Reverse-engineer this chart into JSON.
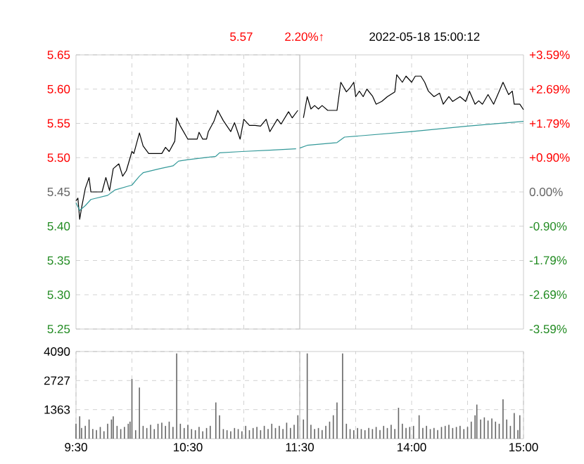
{
  "chart_data": [
    {
      "type": "line",
      "annotations": [
        "5.57",
        "2.20%↑",
        "2022-05-18 15:00:12"
      ],
      "series": [
        {
          "color": "#000000",
          "x": [
            9.5,
            9.517,
            9.533,
            9.55,
            9.583,
            9.617,
            9.633,
            9.733,
            9.767,
            9.8,
            9.833,
            9.883,
            9.917,
            9.95,
            10,
            10.017,
            10.067,
            10.1,
            10.15,
            10.267,
            10.3,
            10.333,
            10.383,
            10.4,
            10.433,
            10.5,
            10.583,
            10.6,
            10.633,
            10.667,
            10.683,
            10.733,
            10.767,
            10.817,
            10.883,
            10.917,
            10.967,
            11,
            11.05,
            11.1,
            11.15,
            11.2,
            11.233,
            11.3,
            11.333,
            11.4,
            11.433,
            11.483
          ],
          "values": [
            5.437,
            5.441,
            5.41,
            5.427,
            5.455,
            5.471,
            5.45,
            5.45,
            5.471,
            5.452,
            5.484,
            5.491,
            5.473,
            5.481,
            5.509,
            5.506,
            5.536,
            5.517,
            5.506,
            5.506,
            5.515,
            5.509,
            5.524,
            5.558,
            5.546,
            5.527,
            5.527,
            5.537,
            5.527,
            5.527,
            5.538,
            5.553,
            5.569,
            5.554,
            5.538,
            5.551,
            5.527,
            5.556,
            5.547,
            5.547,
            5.546,
            5.556,
            5.538,
            5.556,
            5.549,
            5.567,
            5.558,
            5.569
          ]
        },
        {
          "color": "#339999",
          "x": [
            9.5,
            9.533,
            9.583,
            9.633,
            9.783,
            9.85,
            10,
            10.067,
            10.1,
            10.25,
            10.367,
            10.417,
            10.5,
            10.75,
            10.783,
            10.983,
            11.233,
            11.467
          ],
          "values": [
            5.434,
            5.423,
            5.43,
            5.439,
            5.445,
            5.453,
            5.46,
            5.473,
            5.478,
            5.484,
            5.488,
            5.495,
            5.497,
            5.502,
            5.507,
            5.509,
            5.511,
            5.513
          ]
        }
      ],
      "xlim": [
        9.5,
        11.5
      ],
      "xticks": [
        {
          "value": 10,
          "label": null
        },
        {
          "value": 10.5,
          "label": null
        },
        {
          "value": 11,
          "label": null
        }
      ],
      "tick_labels": "y",
      "ylim": [
        5.25,
        5.65
      ],
      "yticks": [
        {
          "value": 5.25,
          "label": "5.25"
        },
        {
          "value": 5.3,
          "label": "5.30"
        },
        {
          "value": 5.35,
          "label": "5.35"
        },
        {
          "value": 5.4,
          "label": "5.40"
        },
        {
          "value": 5.45,
          "label": "5.45"
        },
        {
          "value": 5.5,
          "label": "5.50"
        },
        {
          "value": 5.55,
          "label": "5.55"
        },
        {
          "value": 5.6,
          "label": "5.60"
        },
        {
          "value": 5.65,
          "label": "5.65"
        }
      ],
      "grid": true
    },
    {
      "type": "line",
      "series": [
        {
          "color": "#000000",
          "x": [
            13.033,
            13.067,
            13.1,
            13.133,
            13.167,
            13.2,
            13.25,
            13.333,
            13.367,
            13.417,
            13.45,
            13.483,
            13.5,
            13.533,
            13.567,
            13.6,
            13.65,
            13.683,
            13.733,
            13.783,
            13.85,
            13.867,
            13.917,
            13.95,
            14,
            14.033,
            14.083,
            14.117,
            14.15,
            14.2,
            14.25,
            14.283,
            14.333,
            14.367,
            14.433,
            14.483,
            14.517,
            14.567,
            14.6,
            14.633,
            14.683,
            14.733,
            14.783,
            14.817,
            14.867,
            14.9,
            14.917,
            14.967,
            15
          ],
          "values": [
            5.558,
            5.589,
            5.571,
            5.576,
            5.571,
            5.576,
            5.569,
            5.569,
            5.61,
            5.596,
            5.602,
            5.61,
            5.589,
            5.597,
            5.589,
            5.6,
            5.59,
            5.578,
            5.582,
            5.589,
            5.596,
            5.621,
            5.61,
            5.619,
            5.61,
            5.619,
            5.619,
            5.61,
            5.597,
            5.589,
            5.594,
            5.578,
            5.589,
            5.582,
            5.589,
            5.582,
            5.597,
            5.578,
            5.583,
            5.578,
            5.592,
            5.578,
            5.597,
            5.61,
            5.592,
            5.597,
            5.578,
            5.578,
            5.57
          ]
        },
        {
          "color": "#339999",
          "x": [
            13,
            13.067,
            13.333,
            13.4,
            14,
            14.5,
            15
          ],
          "values": [
            5.514,
            5.518,
            5.522,
            5.53,
            5.538,
            5.546,
            5.553
          ]
        }
      ],
      "xlim": [
        13,
        15
      ],
      "xticks": [
        {
          "value": 13.5,
          "label": null
        },
        {
          "value": 14,
          "label": null
        },
        {
          "value": 14.5,
          "label": null
        }
      ],
      "tick_labels": false,
      "ylim": [
        5.25,
        5.65
      ],
      "yticks": [
        {
          "value": 5.3,
          "label": null
        },
        {
          "value": 5.35,
          "label": null
        },
        {
          "value": 5.4,
          "label": null
        },
        {
          "value": 5.45,
          "label": null
        },
        {
          "value": 5.5,
          "label": null
        },
        {
          "value": 5.55,
          "label": null
        },
        {
          "value": 5.6,
          "label": null
        }
      ],
      "y2lim": [
        -3.59,
        3.59
      ],
      "y2ticks": [
        {
          "value": -3.59,
          "label": "-3.59%"
        },
        {
          "value": -2.69,
          "label": "-2.69%"
        },
        {
          "value": -1.79,
          "label": "-1.79%"
        },
        {
          "value": -0.9,
          "label": "-0.90%"
        },
        {
          "value": 0,
          "label": "0.00%"
        },
        {
          "value": 0.9,
          "label": "+0.90%"
        },
        {
          "value": 1.79,
          "label": "+1.79%"
        },
        {
          "value": 2.69,
          "label": "+2.69%"
        },
        {
          "value": 3.59,
          "label": "+3.59%"
        }
      ],
      "grid": true
    },
    {
      "type": "bar",
      "color": "#666666",
      "x": [
        9.5,
        9.533,
        9.55,
        9.583,
        9.617,
        9.65,
        9.683,
        9.717,
        9.75,
        9.783,
        9.817,
        9.833,
        9.867,
        9.9,
        9.933,
        9.967,
        9.983,
        10,
        10.033,
        10.067,
        10.1,
        10.133,
        10.167,
        10.2,
        10.233,
        10.267,
        10.3,
        10.333,
        10.367,
        10.4,
        10.433,
        10.467,
        10.5,
        10.533,
        10.567,
        10.6,
        10.633,
        10.667,
        10.7,
        10.75,
        10.783,
        10.817,
        10.85,
        10.883,
        10.917,
        10.95,
        10.983,
        11.017,
        11.05,
        11.083,
        11.117,
        11.15,
        11.183,
        11.217,
        11.25,
        11.283,
        11.317,
        11.35,
        11.383,
        11.417,
        11.45,
        11.483
      ],
      "values": [
        700,
        1050,
        500,
        600,
        900,
        450,
        400,
        550,
        350,
        700,
        900,
        1050,
        600,
        450,
        550,
        700,
        800,
        2800,
        400,
        2400,
        600,
        500,
        650,
        450,
        700,
        750,
        600,
        800,
        550,
        4000,
        700,
        500,
        650,
        450,
        400,
        550,
        350,
        500,
        600,
        1700,
        1100,
        450,
        400,
        350,
        500,
        450,
        350,
        600,
        400,
        500,
        550,
        400,
        600,
        450,
        700,
        500,
        600,
        450,
        750,
        500,
        650,
        1100
      ],
      "xlim": [
        9.5,
        11.5
      ],
      "xticks": [
        {
          "value": 9.5,
          "label": "9:30"
        },
        {
          "value": 10,
          "label": null
        },
        {
          "value": 10.5,
          "label": "10:30"
        },
        {
          "value": 11,
          "label": null
        },
        {
          "value": 11.5,
          "label": "11:30"
        }
      ],
      "ylim": [
        0,
        4090
      ],
      "yticks": [
        1363,
        2727,
        4090
      ],
      "grid": true
    },
    {
      "type": "bar",
      "color": "#666666",
      "x": [
        13.033,
        13.067,
        13.1,
        13.133,
        13.167,
        13.2,
        13.233,
        13.267,
        13.3,
        13.333,
        13.383,
        13.417,
        13.45,
        13.483,
        13.517,
        13.55,
        13.583,
        13.617,
        13.65,
        13.683,
        13.717,
        13.75,
        13.783,
        13.817,
        13.85,
        13.883,
        13.917,
        13.95,
        13.983,
        14.017,
        14.067,
        14.1,
        14.133,
        14.167,
        14.2,
        14.233,
        14.267,
        14.3,
        14.333,
        14.367,
        14.4,
        14.433,
        14.467,
        14.5,
        14.533,
        14.567,
        14.583,
        14.617,
        14.65,
        14.683,
        14.717,
        14.75,
        14.783,
        14.817,
        14.85,
        14.883,
        14.917,
        14.95,
        14.967
      ],
      "values": [
        900,
        4000,
        650,
        450,
        500,
        400,
        600,
        800,
        1100,
        1700,
        4000,
        700,
        450,
        400,
        500,
        450,
        400,
        500,
        450,
        550,
        400,
        600,
        500,
        650,
        450,
        1450,
        700,
        500,
        550,
        600,
        1100,
        500,
        600,
        450,
        500,
        400,
        550,
        600,
        650,
        500,
        550,
        600,
        450,
        550,
        800,
        1100,
        1600,
        900,
        1000,
        850,
        950,
        800,
        700,
        1850,
        900,
        600,
        1200,
        400,
        1100
      ],
      "xlim": [
        13,
        15
      ],
      "xticks": [
        {
          "value": 13.5,
          "label": null
        },
        {
          "value": 14,
          "label": "14:00"
        },
        {
          "value": 14.5,
          "label": null
        },
        {
          "value": 15,
          "label": "15:00"
        }
      ],
      "ylim": [
        0,
        4090
      ],
      "yticks": [
        {
          "value": 1363,
          "label": null
        },
        {
          "value": 2727,
          "label": null
        }
      ],
      "tick_labels": "x",
      "grid": true
    }
  ]
}
